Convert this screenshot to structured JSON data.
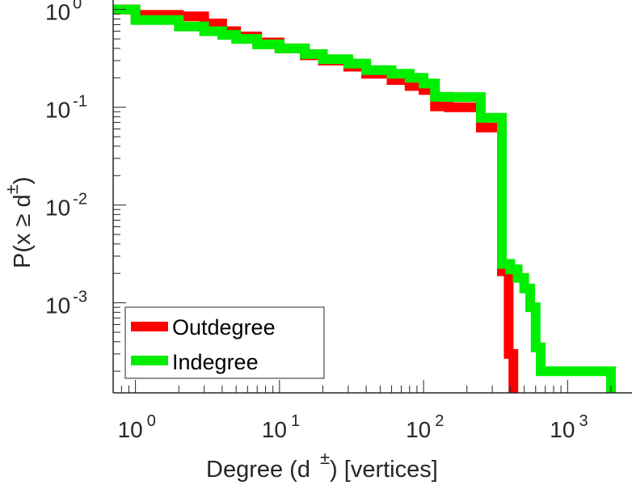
{
  "chart_data": {
    "type": "line",
    "xlabel": {
      "prefix": "Degree (d",
      "sup": "±",
      "suffix": ") [vertices]"
    },
    "ylabel": {
      "prefix": "P(x ≥ d",
      "sup": "±",
      "suffix": ")"
    },
    "xscale": "log",
    "yscale": "log",
    "xlim": [
      0.7,
      2800
    ],
    "ylim": [
      0.00012,
      1.25
    ],
    "grid": false,
    "legend_position": "bottom-left",
    "x_ticks": [
      {
        "value": 1,
        "base": "10",
        "exp": "0"
      },
      {
        "value": 10,
        "base": "10",
        "exp": "1"
      },
      {
        "value": 100,
        "base": "10",
        "exp": "2"
      },
      {
        "value": 1000,
        "base": "10",
        "exp": "3"
      }
    ],
    "y_ticks": [
      {
        "value": 1,
        "base": "10",
        "exp": "0"
      },
      {
        "value": 0.1,
        "base": "10",
        "exp": "-1"
      },
      {
        "value": 0.01,
        "base": "10",
        "exp": "-2"
      },
      {
        "value": 0.001,
        "base": "10",
        "exp": "-3"
      }
    ],
    "series": [
      {
        "name": "Outdegree",
        "color": "#ff0000",
        "points": [
          [
            0.7,
            1.0
          ],
          [
            1.0,
            1.0
          ],
          [
            1.0,
            0.88
          ],
          [
            2.0,
            0.88
          ],
          [
            2.0,
            0.85
          ],
          [
            3.0,
            0.85
          ],
          [
            3.0,
            0.72
          ],
          [
            4.0,
            0.72
          ],
          [
            4.0,
            0.6
          ],
          [
            5.0,
            0.6
          ],
          [
            5.0,
            0.53
          ],
          [
            7.0,
            0.53
          ],
          [
            7.0,
            0.46
          ],
          [
            10.0,
            0.46
          ],
          [
            10.0,
            0.4
          ],
          [
            15.0,
            0.4
          ],
          [
            15.0,
            0.34
          ],
          [
            20.0,
            0.34
          ],
          [
            20.0,
            0.3
          ],
          [
            30.0,
            0.3
          ],
          [
            30.0,
            0.26
          ],
          [
            40.0,
            0.26
          ],
          [
            40.0,
            0.22
          ],
          [
            60.0,
            0.22
          ],
          [
            60.0,
            0.19
          ],
          [
            80.0,
            0.19
          ],
          [
            80.0,
            0.165
          ],
          [
            100.0,
            0.165
          ],
          [
            100.0,
            0.15
          ],
          [
            120.0,
            0.15
          ],
          [
            120.0,
            0.102
          ],
          [
            150.0,
            0.102
          ],
          [
            150.0,
            0.1
          ],
          [
            250.0,
            0.1
          ],
          [
            250.0,
            0.062
          ],
          [
            350.0,
            0.062
          ],
          [
            350.0,
            0.0021
          ],
          [
            390.0,
            0.0021
          ],
          [
            390.0,
            0.0003
          ],
          [
            420.0,
            0.0003
          ],
          [
            420.0,
            0.00012
          ]
        ]
      },
      {
        "name": "Indegree",
        "color": "#00ee00",
        "points": [
          [
            0.7,
            1.0
          ],
          [
            1.0,
            1.0
          ],
          [
            1.0,
            0.78
          ],
          [
            2.0,
            0.78
          ],
          [
            2.0,
            0.67
          ],
          [
            3.0,
            0.67
          ],
          [
            3.0,
            0.6
          ],
          [
            4.0,
            0.6
          ],
          [
            4.0,
            0.55
          ],
          [
            5.0,
            0.55
          ],
          [
            5.0,
            0.5
          ],
          [
            7.0,
            0.5
          ],
          [
            7.0,
            0.44
          ],
          [
            10.0,
            0.44
          ],
          [
            10.0,
            0.4
          ],
          [
            15.0,
            0.4
          ],
          [
            15.0,
            0.35
          ],
          [
            20.0,
            0.35
          ],
          [
            20.0,
            0.31
          ],
          [
            30.0,
            0.31
          ],
          [
            30.0,
            0.28
          ],
          [
            40.0,
            0.28
          ],
          [
            40.0,
            0.24
          ],
          [
            60.0,
            0.24
          ],
          [
            60.0,
            0.22
          ],
          [
            80.0,
            0.22
          ],
          [
            80.0,
            0.2
          ],
          [
            100.0,
            0.2
          ],
          [
            100.0,
            0.175
          ],
          [
            120.0,
            0.175
          ],
          [
            120.0,
            0.128
          ],
          [
            150.0,
            0.128
          ],
          [
            150.0,
            0.127
          ],
          [
            250.0,
            0.127
          ],
          [
            250.0,
            0.078
          ],
          [
            350.0,
            0.078
          ],
          [
            350.0,
            0.0025
          ],
          [
            400.0,
            0.0025
          ],
          [
            400.0,
            0.0022
          ],
          [
            450.0,
            0.0022
          ],
          [
            450.0,
            0.0018
          ],
          [
            500.0,
            0.0018
          ],
          [
            500.0,
            0.0014
          ],
          [
            550.0,
            0.0014
          ],
          [
            550.0,
            0.0009
          ],
          [
            600.0,
            0.0009
          ],
          [
            600.0,
            0.00035
          ],
          [
            650.0,
            0.00035
          ],
          [
            650.0,
            0.0002
          ],
          [
            2000.0,
            0.0002
          ],
          [
            2000.0,
            0.00012
          ]
        ]
      }
    ]
  }
}
